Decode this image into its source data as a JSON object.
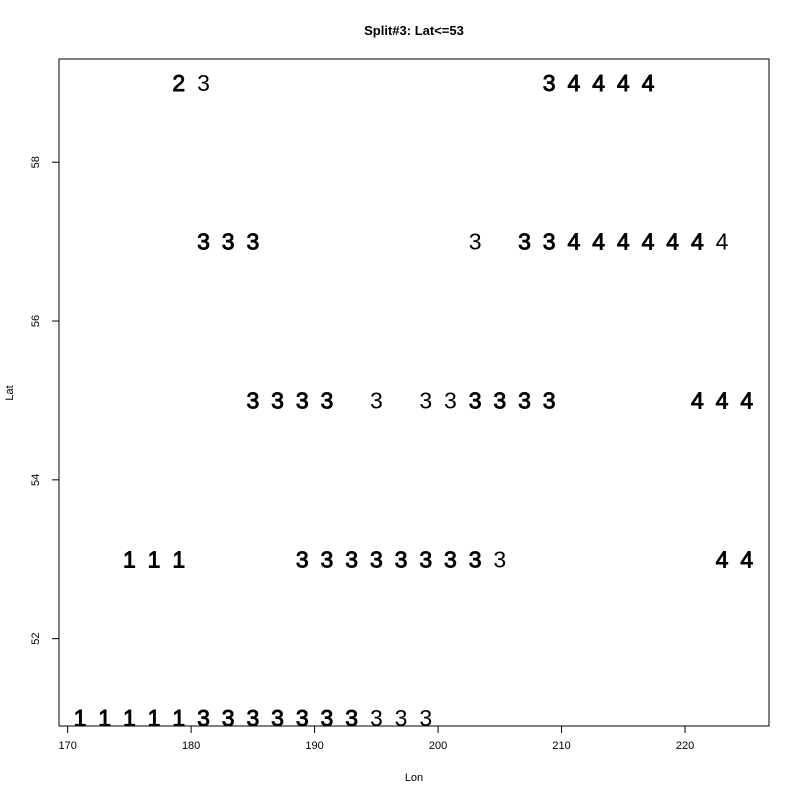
{
  "chart_data": {
    "type": "scatter",
    "title": "Split#3: Lat<=53",
    "xlabel": "Lon",
    "ylabel": "Lat",
    "xlim": [
      169.3,
      226.8
    ],
    "ylim": [
      50.9,
      59.3
    ],
    "xticks": [
      170,
      180,
      190,
      200,
      210,
      220
    ],
    "yticks": [
      52,
      54,
      56,
      58
    ],
    "grid": false,
    "legend": "none",
    "marker": "text-label",
    "points": [
      {
        "x": 171,
        "y": 51,
        "label": "1",
        "bold": true
      },
      {
        "x": 173,
        "y": 51,
        "label": "1",
        "bold": true
      },
      {
        "x": 175,
        "y": 51,
        "label": "1",
        "bold": true
      },
      {
        "x": 177,
        "y": 51,
        "label": "1",
        "bold": true
      },
      {
        "x": 179,
        "y": 51,
        "label": "1",
        "bold": true
      },
      {
        "x": 181,
        "y": 51,
        "label": "3",
        "bold": true
      },
      {
        "x": 183,
        "y": 51,
        "label": "3",
        "bold": true
      },
      {
        "x": 185,
        "y": 51,
        "label": "3",
        "bold": true
      },
      {
        "x": 187,
        "y": 51,
        "label": "3",
        "bold": true
      },
      {
        "x": 189,
        "y": 51,
        "label": "3",
        "bold": true
      },
      {
        "x": 191,
        "y": 51,
        "label": "3",
        "bold": true
      },
      {
        "x": 193,
        "y": 51,
        "label": "3",
        "bold": true
      },
      {
        "x": 195,
        "y": 51,
        "label": "3",
        "bold": false
      },
      {
        "x": 197,
        "y": 51,
        "label": "3",
        "bold": false
      },
      {
        "x": 199,
        "y": 51,
        "label": "3",
        "bold": false
      },
      {
        "x": 175,
        "y": 53,
        "label": "1",
        "bold": true
      },
      {
        "x": 177,
        "y": 53,
        "label": "1",
        "bold": true
      },
      {
        "x": 179,
        "y": 53,
        "label": "1",
        "bold": true
      },
      {
        "x": 189,
        "y": 53,
        "label": "3",
        "bold": true
      },
      {
        "x": 191,
        "y": 53,
        "label": "3",
        "bold": true
      },
      {
        "x": 193,
        "y": 53,
        "label": "3",
        "bold": true
      },
      {
        "x": 195,
        "y": 53,
        "label": "3",
        "bold": true
      },
      {
        "x": 197,
        "y": 53,
        "label": "3",
        "bold": true
      },
      {
        "x": 199,
        "y": 53,
        "label": "3",
        "bold": true
      },
      {
        "x": 201,
        "y": 53,
        "label": "3",
        "bold": true
      },
      {
        "x": 203,
        "y": 53,
        "label": "3",
        "bold": true
      },
      {
        "x": 205,
        "y": 53,
        "label": "3",
        "bold": false
      },
      {
        "x": 223,
        "y": 53,
        "label": "4",
        "bold": true
      },
      {
        "x": 225,
        "y": 53,
        "label": "4",
        "bold": true
      },
      {
        "x": 185,
        "y": 55,
        "label": "3",
        "bold": true
      },
      {
        "x": 187,
        "y": 55,
        "label": "3",
        "bold": true
      },
      {
        "x": 189,
        "y": 55,
        "label": "3",
        "bold": true
      },
      {
        "x": 191,
        "y": 55,
        "label": "3",
        "bold": true
      },
      {
        "x": 195,
        "y": 55,
        "label": "3",
        "bold": false
      },
      {
        "x": 199,
        "y": 55,
        "label": "3",
        "bold": false
      },
      {
        "x": 201,
        "y": 55,
        "label": "3",
        "bold": false
      },
      {
        "x": 203,
        "y": 55,
        "label": "3",
        "bold": true
      },
      {
        "x": 205,
        "y": 55,
        "label": "3",
        "bold": true
      },
      {
        "x": 207,
        "y": 55,
        "label": "3",
        "bold": true
      },
      {
        "x": 209,
        "y": 55,
        "label": "3",
        "bold": true
      },
      {
        "x": 221,
        "y": 55,
        "label": "4",
        "bold": true
      },
      {
        "x": 223,
        "y": 55,
        "label": "4",
        "bold": true
      },
      {
        "x": 225,
        "y": 55,
        "label": "4",
        "bold": true
      },
      {
        "x": 181,
        "y": 57,
        "label": "3",
        "bold": true
      },
      {
        "x": 183,
        "y": 57,
        "label": "3",
        "bold": true
      },
      {
        "x": 185,
        "y": 57,
        "label": "3",
        "bold": true
      },
      {
        "x": 203,
        "y": 57,
        "label": "3",
        "bold": false
      },
      {
        "x": 207,
        "y": 57,
        "label": "3",
        "bold": true
      },
      {
        "x": 209,
        "y": 57,
        "label": "3",
        "bold": true
      },
      {
        "x": 211,
        "y": 57,
        "label": "4",
        "bold": true
      },
      {
        "x": 213,
        "y": 57,
        "label": "4",
        "bold": true
      },
      {
        "x": 215,
        "y": 57,
        "label": "4",
        "bold": true
      },
      {
        "x": 217,
        "y": 57,
        "label": "4",
        "bold": true
      },
      {
        "x": 219,
        "y": 57,
        "label": "4",
        "bold": true
      },
      {
        "x": 221,
        "y": 57,
        "label": "4",
        "bold": true
      },
      {
        "x": 223,
        "y": 57,
        "label": "4",
        "bold": false
      },
      {
        "x": 179,
        "y": 59,
        "label": "2",
        "bold": true
      },
      {
        "x": 181,
        "y": 59,
        "label": "3",
        "bold": false
      },
      {
        "x": 209,
        "y": 59,
        "label": "3",
        "bold": true
      },
      {
        "x": 211,
        "y": 59,
        "label": "4",
        "bold": true
      },
      {
        "x": 213,
        "y": 59,
        "label": "4",
        "bold": true
      },
      {
        "x": 215,
        "y": 59,
        "label": "4",
        "bold": true
      },
      {
        "x": 217,
        "y": 59,
        "label": "4",
        "bold": true
      }
    ]
  }
}
